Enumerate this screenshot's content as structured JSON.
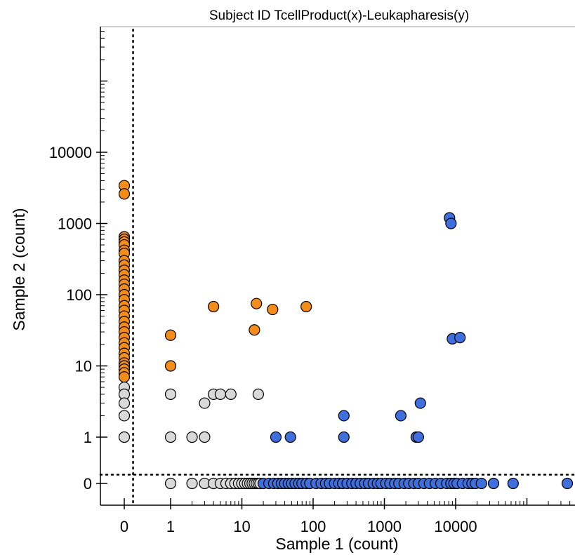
{
  "chart_data": {
    "type": "scatter",
    "title": "Subject ID TcellProduct(x)-Leukapharesis(y)",
    "xlabel": "Sample 1 (count)",
    "ylabel": "Sample 2 (count)",
    "x_scale": "log-with-zero",
    "y_scale": "log-with-zero",
    "x_ticks": [
      "0",
      "1",
      "10",
      "100",
      "1000",
      "10000"
    ],
    "y_ticks": [
      "0",
      "1",
      "10",
      "100",
      "1000",
      "10000"
    ],
    "threshold_lines": {
      "x": 0.5,
      "y": 0.5
    },
    "grid": false,
    "colors": {
      "orange": "#f28c1a",
      "grey": "#d9d9d9",
      "blue": "#3f6fdc"
    },
    "series": [
      {
        "color": "orange",
        "points": [
          [
            0,
            3400
          ],
          [
            0,
            2600
          ],
          [
            0,
            650
          ],
          [
            0,
            600
          ],
          [
            0,
            550
          ],
          [
            0,
            500
          ],
          [
            0,
            420
          ],
          [
            0,
            380
          ],
          [
            0,
            300
          ],
          [
            0,
            260
          ],
          [
            0,
            220
          ],
          [
            0,
            190
          ],
          [
            0,
            160
          ],
          [
            0,
            140
          ],
          [
            0,
            120
          ],
          [
            0,
            100
          ],
          [
            0,
            85
          ],
          [
            0,
            70
          ],
          [
            0,
            60
          ],
          [
            0,
            50
          ],
          [
            0,
            42
          ],
          [
            0,
            35
          ],
          [
            0,
            30
          ],
          [
            0,
            25
          ],
          [
            0,
            21
          ],
          [
            0,
            18
          ],
          [
            0,
            15
          ],
          [
            0,
            13
          ],
          [
            0,
            11
          ],
          [
            0,
            10
          ],
          [
            0,
            9
          ],
          [
            0,
            8
          ],
          [
            0,
            7
          ],
          [
            1,
            27
          ],
          [
            1,
            10
          ],
          [
            4,
            68
          ],
          [
            15,
            32
          ],
          [
            16,
            75
          ],
          [
            27,
            62
          ],
          [
            80,
            68
          ]
        ]
      },
      {
        "color": "grey",
        "points": [
          [
            0,
            5
          ],
          [
            0,
            4
          ],
          [
            0,
            3
          ],
          [
            0,
            2
          ],
          [
            0,
            1
          ],
          [
            1,
            4
          ],
          [
            1,
            1
          ],
          [
            2,
            1
          ],
          [
            3,
            3
          ],
          [
            3,
            1
          ],
          [
            4,
            4
          ],
          [
            5,
            4
          ],
          [
            7,
            4
          ],
          [
            17,
            4
          ],
          [
            1,
            0
          ],
          [
            2,
            0
          ],
          [
            3,
            0
          ],
          [
            4,
            0
          ],
          [
            5,
            0
          ],
          [
            6,
            0
          ],
          [
            7,
            0
          ],
          [
            8,
            0
          ],
          [
            9,
            0
          ],
          [
            10,
            0
          ],
          [
            11,
            0
          ],
          [
            12,
            0
          ],
          [
            13,
            0
          ],
          [
            14,
            0
          ],
          [
            15,
            0
          ],
          [
            16,
            0
          ],
          [
            17,
            0
          ],
          [
            18,
            0
          ]
        ]
      },
      {
        "color": "blue",
        "points": [
          [
            8200,
            1200
          ],
          [
            8600,
            1000
          ],
          [
            9000,
            24
          ],
          [
            11500,
            25
          ],
          [
            30,
            1
          ],
          [
            48,
            1
          ],
          [
            270,
            1
          ],
          [
            270,
            2
          ],
          [
            1700,
            2
          ],
          [
            2800,
            1
          ],
          [
            3000,
            1
          ],
          [
            3200,
            3
          ],
          [
            20,
            0
          ],
          [
            24,
            0
          ],
          [
            28,
            0
          ],
          [
            32,
            0
          ],
          [
            36,
            0
          ],
          [
            40,
            0
          ],
          [
            45,
            0
          ],
          [
            50,
            0
          ],
          [
            56,
            0
          ],
          [
            63,
            0
          ],
          [
            70,
            0
          ],
          [
            80,
            0
          ],
          [
            90,
            0
          ],
          [
            110,
            0
          ],
          [
            130,
            0
          ],
          [
            150,
            0
          ],
          [
            170,
            0
          ],
          [
            200,
            0
          ],
          [
            230,
            0
          ],
          [
            260,
            0
          ],
          [
            300,
            0
          ],
          [
            350,
            0
          ],
          [
            400,
            0
          ],
          [
            460,
            0
          ],
          [
            530,
            0
          ],
          [
            600,
            0
          ],
          [
            700,
            0
          ],
          [
            800,
            0
          ],
          [
            900,
            0
          ],
          [
            1050,
            0
          ],
          [
            1200,
            0
          ],
          [
            1400,
            0
          ],
          [
            1600,
            0
          ],
          [
            1900,
            0
          ],
          [
            2200,
            0
          ],
          [
            2600,
            0
          ],
          [
            3000,
            0
          ],
          [
            3600,
            0
          ],
          [
            4300,
            0
          ],
          [
            5200,
            0
          ],
          [
            6200,
            0
          ],
          [
            7500,
            0
          ],
          [
            8600,
            0
          ],
          [
            9500,
            0
          ],
          [
            10500,
            0
          ],
          [
            12500,
            0
          ],
          [
            15000,
            0
          ],
          [
            17000,
            0
          ],
          [
            19000,
            0
          ],
          [
            23000,
            0
          ],
          [
            34000,
            0
          ],
          [
            64000,
            0
          ],
          [
            380000,
            0
          ]
        ]
      }
    ]
  }
}
